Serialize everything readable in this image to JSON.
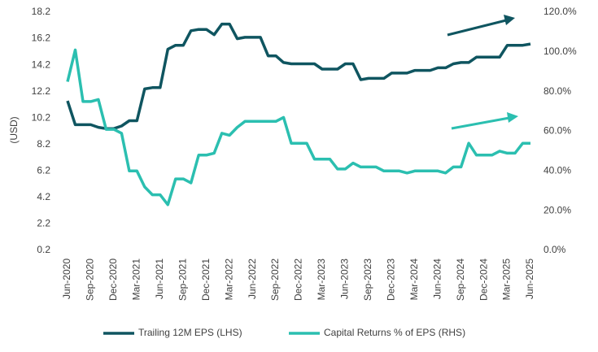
{
  "chart_data": {
    "type": "line",
    "y_label": "(USD)",
    "categories": [
      "Jun-2020",
      null,
      null,
      "Sep-2020",
      null,
      null,
      "Dec-2020",
      null,
      null,
      "Mar-2021",
      null,
      null,
      "Jun-2021",
      null,
      null,
      "Sep-2021",
      null,
      null,
      "Dec-2021",
      null,
      null,
      "Mar-2022",
      null,
      null,
      "Jun-2022",
      null,
      null,
      "Sep-2022",
      null,
      null,
      "Dec-2022",
      null,
      null,
      "Mar-2023",
      null,
      null,
      "Jun-2023",
      null,
      null,
      "Sep-2023",
      null,
      null,
      "Dec-2023",
      null,
      null,
      "Mar-2024",
      null,
      null,
      "Jun-2024",
      null,
      null,
      "Sep-2024",
      null,
      null,
      "Dec-2024",
      null,
      null,
      "Mar-2025",
      null,
      null,
      "Jun-2025"
    ],
    "series": [
      {
        "name": "Trailing 12M EPS (LHS)",
        "color": "#0f5560",
        "values": [
          11.5,
          9.7,
          9.7,
          9.7,
          9.5,
          9.4,
          9.4,
          9.6,
          10.0,
          10.0,
          12.4,
          12.5,
          12.5,
          15.4,
          15.7,
          15.7,
          16.8,
          16.9,
          16.9,
          16.5,
          17.3,
          17.3,
          16.2,
          16.3,
          16.3,
          16.3,
          14.9,
          14.9,
          14.4,
          14.3,
          14.3,
          14.3,
          14.3,
          13.9,
          13.9,
          13.9,
          14.3,
          14.3,
          13.1,
          13.2,
          13.2,
          13.2,
          13.6,
          13.6,
          13.6,
          13.8,
          13.8,
          13.8,
          14.0,
          14.0,
          14.3,
          14.4,
          14.4,
          14.8,
          14.8,
          14.8,
          14.8,
          15.7,
          15.7,
          15.7,
          15.8
        ]
      },
      {
        "name": "Capital Returns % of EPS (RHS)",
        "color": "#2bbfb0",
        "axis": "y2",
        "values": [
          85,
          101,
          75,
          75,
          76,
          61,
          61,
          59,
          40,
          40,
          32,
          28,
          28,
          23,
          36,
          36,
          34,
          48,
          48,
          49,
          59,
          58,
          62,
          65,
          65,
          65,
          65,
          65,
          67,
          54,
          54,
          54,
          46,
          46,
          46,
          41,
          41,
          44,
          42,
          42,
          42,
          40,
          40,
          40,
          39,
          40,
          40,
          40,
          40,
          39,
          42,
          42,
          54,
          48,
          48,
          48,
          50,
          49,
          49,
          54,
          54
        ]
      }
    ],
    "ylim": [
      0.2,
      18.2
    ],
    "yticks": [
      0.2,
      2.2,
      4.2,
      6.2,
      8.2,
      10.2,
      12.2,
      14.2,
      16.2,
      18.2
    ],
    "y2lim": [
      0,
      120
    ],
    "y2ticks": [
      {
        "value": 0,
        "label": "0.0%"
      },
      {
        "value": 20,
        "label": "20.0%"
      },
      {
        "value": 40,
        "label": "40.0%"
      },
      {
        "value": 60,
        "label": "60.0%"
      },
      {
        "value": 80,
        "label": "80.0%"
      },
      {
        "value": 100,
        "label": "100.0%"
      },
      {
        "value": 120,
        "label": "120.0%"
      }
    ],
    "grid": false,
    "legend": "bottom"
  }
}
